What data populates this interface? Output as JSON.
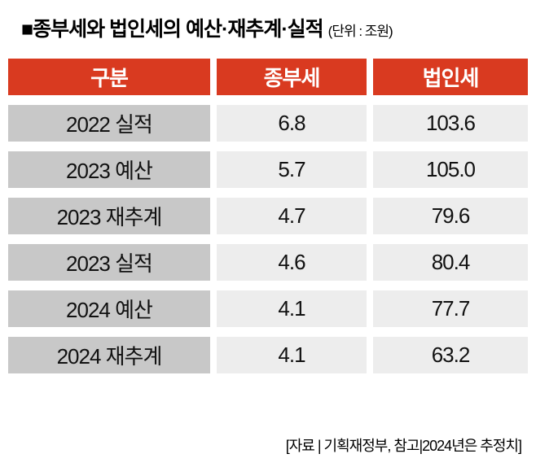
{
  "title": {
    "main": "■종부세와 법인세의 예산·재추계·실적",
    "unit": "(단위 : 조원)"
  },
  "chart_data": {
    "type": "table",
    "columns": [
      "구분",
      "종부세",
      "법인세"
    ],
    "rows": [
      [
        "2022 실적",
        "6.8",
        "103.6"
      ],
      [
        "2023 예산",
        "5.7",
        "105.0"
      ],
      [
        "2023 재추계",
        "4.7",
        "79.6"
      ],
      [
        "2023 실적",
        "4.6",
        "80.4"
      ],
      [
        "2024 예산",
        "4.1",
        "77.7"
      ],
      [
        "2024 재추계",
        "4.1",
        "63.2"
      ]
    ],
    "title": "종부세와 법인세의 예산·재추계·실적",
    "unit_label": "단위 : 조원"
  },
  "footer": {
    "source": "[자료 | 기획재정부, 참고|2024년은 추정치]"
  },
  "colors": {
    "header_bg": "#d93a20",
    "header_text": "#ffffff",
    "row_label_bg": "#c8c8c8",
    "row_value_bg": "#ededed",
    "text": "#111111"
  }
}
